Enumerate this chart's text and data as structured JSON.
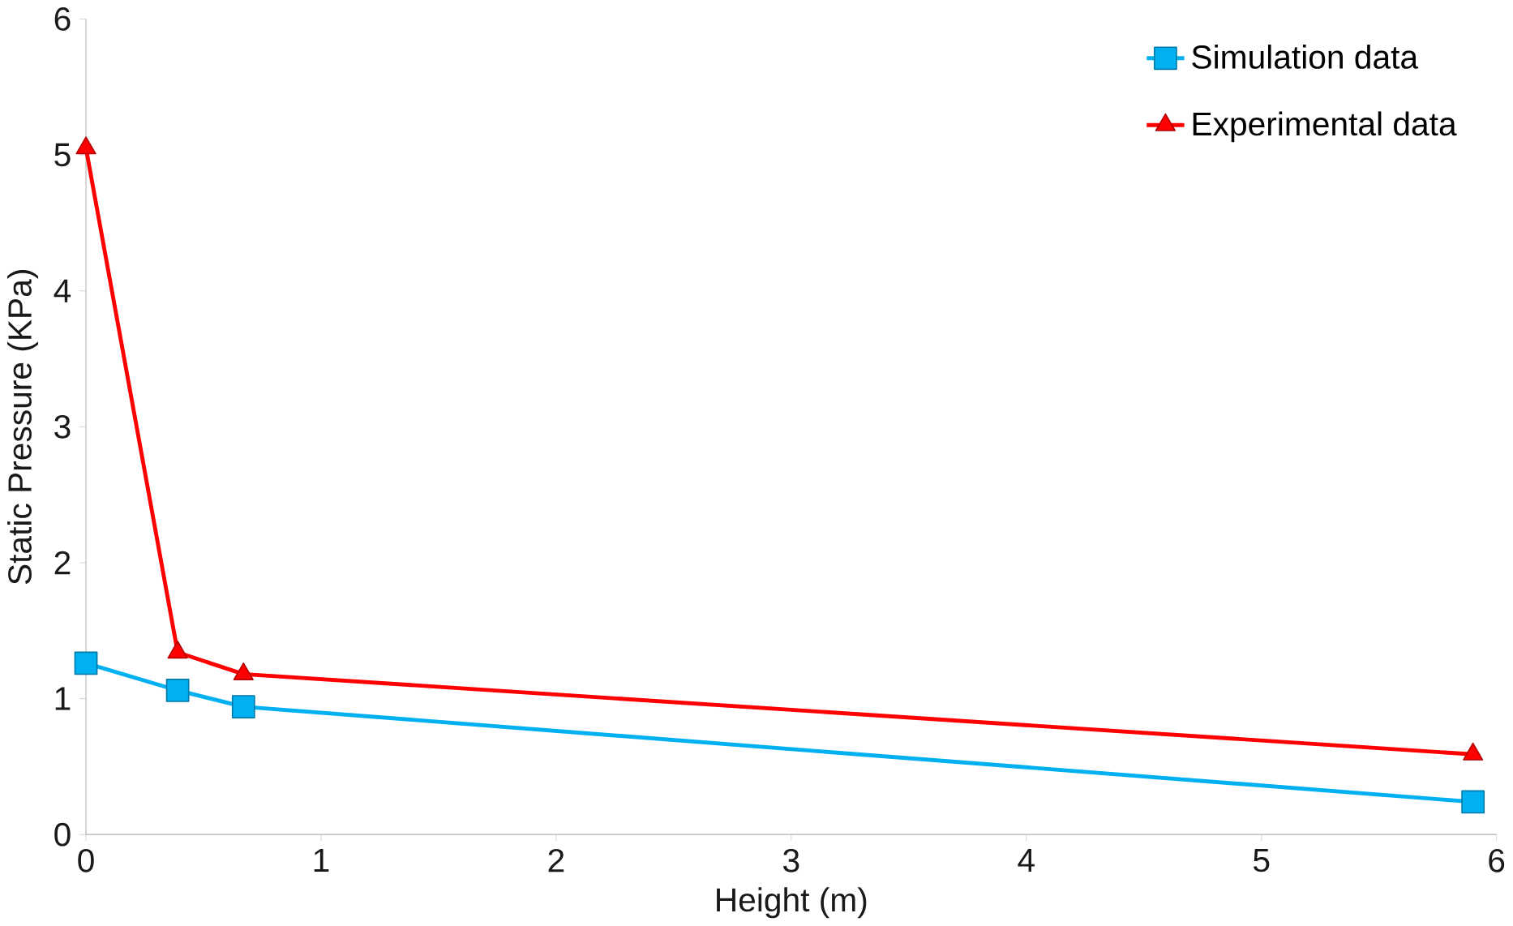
{
  "chart_data": {
    "type": "line",
    "xlabel": "Height (m)",
    "ylabel": "Static Pressure (KPa)",
    "xlim": [
      0,
      6
    ],
    "ylim": [
      0,
      6
    ],
    "xticks": [
      0,
      1,
      2,
      3,
      4,
      5,
      6
    ],
    "yticks": [
      0,
      1,
      2,
      3,
      4,
      5,
      6
    ],
    "grid": false,
    "legend": "top right",
    "series": [
      {
        "name": "Simulation data",
        "color": "#00b0f0",
        "marker": "square",
        "x": [
          0,
          0.39,
          0.67,
          5.9
        ],
        "values": [
          1.26,
          1.06,
          0.94,
          0.24
        ]
      },
      {
        "name": "Experimental data",
        "color": "#ff0000",
        "marker": "triangle",
        "x": [
          0,
          0.39,
          0.67,
          5.9
        ],
        "values": [
          5.05,
          1.34,
          1.18,
          0.59
        ]
      }
    ]
  }
}
